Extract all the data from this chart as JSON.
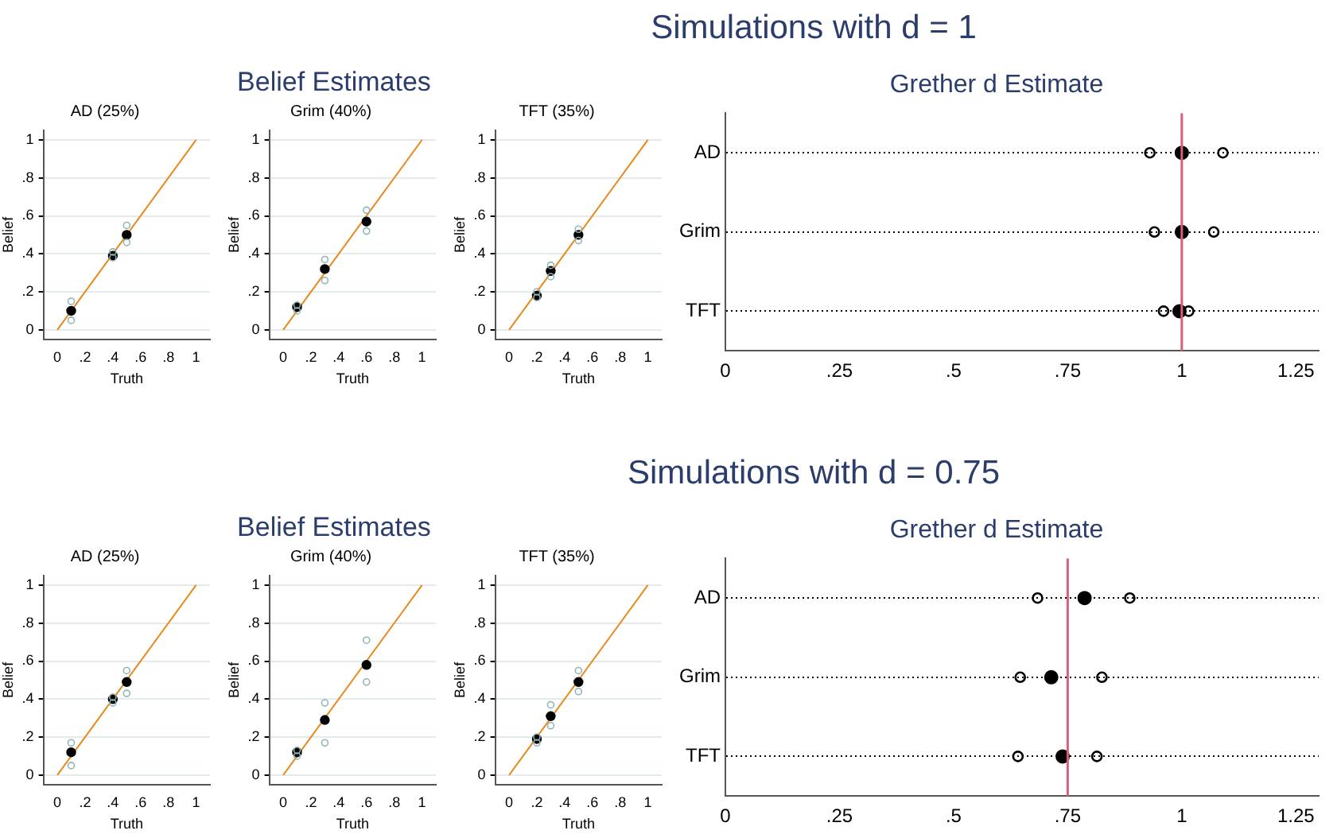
{
  "chart_data": [
    {
      "type": "scatter",
      "title": "AD (25%)",
      "xlabel": "Truth",
      "ylabel": "Belief",
      "annotations": [
        "Simulations with d = 1",
        "Belief Estimates"
      ],
      "xlim": [
        -0.1,
        1.1
      ],
      "ylim": [
        -0.05,
        1.05
      ],
      "xticks": [
        {
          "value": 0,
          "label": "0"
        },
        {
          "value": 0.2,
          "label": ".2"
        },
        {
          "value": 0.4,
          "label": ".4"
        },
        {
          "value": 0.6,
          "label": ".6"
        },
        {
          "value": 0.8,
          "label": ".8"
        },
        {
          "value": 1,
          "label": "1"
        }
      ],
      "yticks": [
        {
          "value": 0,
          "label": "0"
        },
        {
          "value": 0.2,
          "label": ".2"
        },
        {
          "value": 0.4,
          "label": ".4"
        },
        {
          "value": 0.6,
          "label": ".6"
        },
        {
          "value": 0.8,
          "label": ".8"
        },
        {
          "value": 1,
          "label": "1"
        }
      ],
      "grid": "y",
      "series": [
        {
          "color": "#000000",
          "marker": "circle",
          "x": [
            0.1,
            0.4,
            0.5
          ],
          "values": [
            0.1,
            0.39,
            0.5
          ]
        },
        {
          "color": "#8fb5b5",
          "marker": "circle",
          "x": [
            0.1,
            0.1,
            0.4,
            0.4,
            0.5,
            0.5
          ],
          "values": [
            0.05,
            0.15,
            0.38,
            0.41,
            0.46,
            0.55
          ]
        },
        {
          "type": "line",
          "color": "#e8891c",
          "x": [
            0,
            1
          ],
          "values": [
            0,
            1
          ]
        }
      ]
    },
    {
      "type": "scatter",
      "title": "Grim (40%)",
      "xlabel": "Truth",
      "ylabel": "Belief",
      "xlim": [
        -0.1,
        1.1
      ],
      "ylim": [
        -0.05,
        1.05
      ],
      "xticks": [
        {
          "value": 0,
          "label": "0"
        },
        {
          "value": 0.2,
          "label": ".2"
        },
        {
          "value": 0.4,
          "label": ".4"
        },
        {
          "value": 0.6,
          "label": ".6"
        },
        {
          "value": 0.8,
          "label": ".8"
        },
        {
          "value": 1,
          "label": "1"
        }
      ],
      "yticks": [
        {
          "value": 0,
          "label": "0"
        },
        {
          "value": 0.2,
          "label": ".2"
        },
        {
          "value": 0.4,
          "label": ".4"
        },
        {
          "value": 0.6,
          "label": ".6"
        },
        {
          "value": 0.8,
          "label": ".8"
        },
        {
          "value": 1,
          "label": "1"
        }
      ],
      "grid": "y",
      "series": [
        {
          "color": "#000000",
          "marker": "circle",
          "x": [
            0.1,
            0.3,
            0.6
          ],
          "values": [
            0.12,
            0.32,
            0.57
          ]
        },
        {
          "color": "#8fb5b5",
          "marker": "circle",
          "x": [
            0.1,
            0.1,
            0.3,
            0.3,
            0.6,
            0.6
          ],
          "values": [
            0.1,
            0.13,
            0.26,
            0.37,
            0.52,
            0.63
          ]
        },
        {
          "type": "line",
          "color": "#e8891c",
          "x": [
            0,
            1
          ],
          "values": [
            0,
            1
          ]
        }
      ]
    },
    {
      "type": "scatter",
      "title": "TFT (35%)",
      "xlabel": "Truth",
      "ylabel": "Belief",
      "xlim": [
        -0.1,
        1.1
      ],
      "ylim": [
        -0.05,
        1.05
      ],
      "xticks": [
        {
          "value": 0,
          "label": "0"
        },
        {
          "value": 0.2,
          "label": ".2"
        },
        {
          "value": 0.4,
          "label": ".4"
        },
        {
          "value": 0.6,
          "label": ".6"
        },
        {
          "value": 0.8,
          "label": ".8"
        },
        {
          "value": 1,
          "label": "1"
        }
      ],
      "yticks": [
        {
          "value": 0,
          "label": "0"
        },
        {
          "value": 0.2,
          "label": ".2"
        },
        {
          "value": 0.4,
          "label": ".4"
        },
        {
          "value": 0.6,
          "label": ".6"
        },
        {
          "value": 0.8,
          "label": ".8"
        },
        {
          "value": 1,
          "label": "1"
        }
      ],
      "grid": "y",
      "series": [
        {
          "color": "#000000",
          "marker": "circle",
          "x": [
            0.2,
            0.3,
            0.5
          ],
          "values": [
            0.18,
            0.31,
            0.5
          ]
        },
        {
          "color": "#8fb5b5",
          "marker": "circle",
          "x": [
            0.2,
            0.2,
            0.3,
            0.3,
            0.5,
            0.5
          ],
          "values": [
            0.17,
            0.2,
            0.28,
            0.34,
            0.47,
            0.53
          ]
        },
        {
          "type": "line",
          "color": "#e8891c",
          "x": [
            0,
            1
          ],
          "values": [
            0,
            1
          ]
        }
      ]
    },
    {
      "type": "scatter",
      "orientation": "horizontal",
      "title": "Grether d Estimate",
      "categories": [
        "AD",
        "Grim",
        "TFT"
      ],
      "xlim": [
        0,
        1.3
      ],
      "xticks": [
        {
          "value": 0,
          "label": "0"
        },
        {
          "value": 0.25,
          "label": ".25"
        },
        {
          "value": 0.5,
          "label": ".5"
        },
        {
          "value": 0.75,
          "label": ".75"
        },
        {
          "value": 1,
          "label": "1"
        },
        {
          "value": 1.25,
          "label": "1.25"
        }
      ],
      "grid": "y",
      "marker": "circle",
      "ref_lines": [
        {
          "axis": "x",
          "value": 1,
          "color": "#d6607a"
        }
      ],
      "series": [
        {
          "color": "#000000",
          "values": [
            1.0,
            1.0,
            0.995
          ]
        },
        {
          "color": "#000000",
          "values": [
            0.93,
            0.94,
            0.96
          ]
        },
        {
          "color": "#000000",
          "values": [
            1.09,
            1.07,
            1.015
          ]
        }
      ]
    },
    {
      "type": "scatter",
      "title": "AD (25%)",
      "xlabel": "Truth",
      "ylabel": "Belief",
      "annotations": [
        "Simulations with d = 0.75",
        "Belief Estimates"
      ],
      "xlim": [
        -0.1,
        1.1
      ],
      "ylim": [
        -0.05,
        1.05
      ],
      "xticks": [
        {
          "value": 0,
          "label": "0"
        },
        {
          "value": 0.2,
          "label": ".2"
        },
        {
          "value": 0.4,
          "label": ".4"
        },
        {
          "value": 0.6,
          "label": ".6"
        },
        {
          "value": 0.8,
          "label": ".8"
        },
        {
          "value": 1,
          "label": "1"
        }
      ],
      "yticks": [
        {
          "value": 0,
          "label": "0"
        },
        {
          "value": 0.2,
          "label": ".2"
        },
        {
          "value": 0.4,
          "label": ".4"
        },
        {
          "value": 0.6,
          "label": ".6"
        },
        {
          "value": 0.8,
          "label": ".8"
        },
        {
          "value": 1,
          "label": "1"
        }
      ],
      "grid": "y",
      "series": [
        {
          "color": "#000000",
          "marker": "circle",
          "x": [
            0.1,
            0.4,
            0.5
          ],
          "values": [
            0.12,
            0.4,
            0.49
          ]
        },
        {
          "color": "#8fb5b5",
          "marker": "circle",
          "x": [
            0.1,
            0.1,
            0.4,
            0.4,
            0.5,
            0.5
          ],
          "values": [
            0.05,
            0.17,
            0.38,
            0.41,
            0.43,
            0.55
          ]
        },
        {
          "type": "line",
          "color": "#e8891c",
          "x": [
            0,
            1
          ],
          "values": [
            0,
            1
          ]
        }
      ]
    },
    {
      "type": "scatter",
      "title": "Grim (40%)",
      "xlabel": "Truth",
      "ylabel": "Belief",
      "xlim": [
        -0.1,
        1.1
      ],
      "ylim": [
        -0.05,
        1.05
      ],
      "xticks": [
        {
          "value": 0,
          "label": "0"
        },
        {
          "value": 0.2,
          "label": ".2"
        },
        {
          "value": 0.4,
          "label": ".4"
        },
        {
          "value": 0.6,
          "label": ".6"
        },
        {
          "value": 0.8,
          "label": ".8"
        },
        {
          "value": 1,
          "label": "1"
        }
      ],
      "yticks": [
        {
          "value": 0,
          "label": "0"
        },
        {
          "value": 0.2,
          "label": ".2"
        },
        {
          "value": 0.4,
          "label": ".4"
        },
        {
          "value": 0.6,
          "label": ".6"
        },
        {
          "value": 0.8,
          "label": ".8"
        },
        {
          "value": 1,
          "label": "1"
        }
      ],
      "grid": "y",
      "series": [
        {
          "color": "#000000",
          "marker": "circle",
          "x": [
            0.1,
            0.3,
            0.6
          ],
          "values": [
            0.12,
            0.29,
            0.58
          ]
        },
        {
          "color": "#8fb5b5",
          "marker": "circle",
          "x": [
            0.1,
            0.1,
            0.3,
            0.3,
            0.6,
            0.6
          ],
          "values": [
            0.1,
            0.13,
            0.17,
            0.38,
            0.49,
            0.71
          ]
        },
        {
          "type": "line",
          "color": "#e8891c",
          "x": [
            0,
            1
          ],
          "values": [
            0,
            1
          ]
        }
      ]
    },
    {
      "type": "scatter",
      "title": "TFT (35%)",
      "xlabel": "Truth",
      "ylabel": "Belief",
      "xlim": [
        -0.1,
        1.1
      ],
      "ylim": [
        -0.05,
        1.05
      ],
      "xticks": [
        {
          "value": 0,
          "label": "0"
        },
        {
          "value": 0.2,
          "label": ".2"
        },
        {
          "value": 0.4,
          "label": ".4"
        },
        {
          "value": 0.6,
          "label": ".6"
        },
        {
          "value": 0.8,
          "label": ".8"
        },
        {
          "value": 1,
          "label": "1"
        }
      ],
      "yticks": [
        {
          "value": 0,
          "label": "0"
        },
        {
          "value": 0.2,
          "label": ".2"
        },
        {
          "value": 0.4,
          "label": ".4"
        },
        {
          "value": 0.6,
          "label": ".6"
        },
        {
          "value": 0.8,
          "label": ".8"
        },
        {
          "value": 1,
          "label": "1"
        }
      ],
      "grid": "y",
      "series": [
        {
          "color": "#000000",
          "marker": "circle",
          "x": [
            0.2,
            0.3,
            0.5
          ],
          "values": [
            0.19,
            0.31,
            0.49
          ]
        },
        {
          "color": "#8fb5b5",
          "marker": "circle",
          "x": [
            0.2,
            0.2,
            0.3,
            0.3,
            0.5,
            0.5
          ],
          "values": [
            0.17,
            0.2,
            0.26,
            0.37,
            0.44,
            0.55
          ]
        },
        {
          "type": "line",
          "color": "#e8891c",
          "x": [
            0,
            1
          ],
          "values": [
            0,
            1
          ]
        }
      ]
    },
    {
      "type": "scatter",
      "orientation": "horizontal",
      "title": "Grether d Estimate",
      "categories": [
        "AD",
        "Grim",
        "TFT"
      ],
      "xlim": [
        0,
        1.3
      ],
      "xticks": [
        {
          "value": 0,
          "label": "0"
        },
        {
          "value": 0.25,
          "label": ".25"
        },
        {
          "value": 0.5,
          "label": ".5"
        },
        {
          "value": 0.75,
          "label": ".75"
        },
        {
          "value": 1,
          "label": "1"
        },
        {
          "value": 1.25,
          "label": "1.25"
        }
      ],
      "grid": "y",
      "marker": "circle",
      "ref_lines": [
        {
          "axis": "x",
          "value": 0.75,
          "color": "#d6607a"
        }
      ],
      "series": [
        {
          "color": "#000000",
          "values": [
            0.787,
            0.714,
            0.739
          ]
        },
        {
          "color": "#000000",
          "values": [
            0.684,
            0.646,
            0.641
          ]
        },
        {
          "color": "#000000",
          "values": [
            0.886,
            0.825,
            0.814
          ]
        }
      ]
    }
  ]
}
